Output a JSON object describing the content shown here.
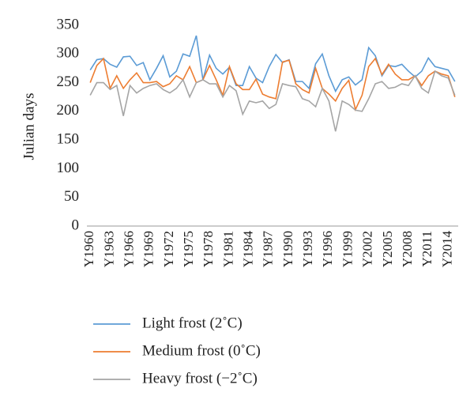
{
  "chart_data": {
    "type": "line",
    "y_label": "Julian days",
    "categories": [
      "Y1960",
      null,
      null,
      "Y1963",
      null,
      null,
      "Y1966",
      null,
      null,
      "Y1969",
      null,
      null,
      "Y1972",
      null,
      null,
      "Y1975",
      null,
      null,
      "Y1978",
      null,
      null,
      "Y1981",
      null,
      null,
      "Y1984",
      null,
      null,
      "Y1987",
      null,
      null,
      "Y1990",
      null,
      null,
      "Y1993",
      null,
      null,
      "Y1996",
      null,
      null,
      "Y1999",
      null,
      null,
      "Y2002",
      null,
      null,
      "Y2005",
      null,
      null,
      "Y2008",
      null,
      null,
      "Y2011",
      null,
      null,
      "Y2014",
      null
    ],
    "series": [
      {
        "name": "Light frost (2˚C)",
        "color": "#5b9bd5",
        "values": [
          272,
          290,
          292,
          282,
          277,
          295,
          296,
          280,
          285,
          255,
          275,
          297,
          260,
          270,
          300,
          296,
          332,
          255,
          298,
          275,
          265,
          277,
          245,
          245,
          278,
          258,
          250,
          278,
          299,
          285,
          290,
          252,
          252,
          240,
          283,
          300,
          262,
          235,
          255,
          260,
          246,
          255,
          311,
          297,
          262,
          280,
          278,
          282,
          270,
          260,
          270,
          293,
          278,
          275,
          272,
          252
        ]
      },
      {
        "name": "Medium frost (0˚C)",
        "color": "#ed7d31",
        "values": [
          250,
          280,
          292,
          240,
          262,
          240,
          255,
          267,
          250,
          250,
          252,
          243,
          248,
          262,
          255,
          278,
          250,
          255,
          280,
          255,
          228,
          278,
          248,
          238,
          238,
          256,
          230,
          225,
          222,
          286,
          289,
          248,
          238,
          232,
          275,
          240,
          230,
          218,
          240,
          254,
          203,
          228,
          278,
          292,
          264,
          282,
          265,
          255,
          255,
          262,
          245,
          262,
          270,
          265,
          262,
          225
        ]
      },
      {
        "name": "Heavy frost (−2˚C)",
        "color": "#a5a5a5",
        "values": [
          228,
          250,
          250,
          238,
          245,
          192,
          245,
          232,
          240,
          245,
          248,
          238,
          232,
          240,
          255,
          225,
          250,
          255,
          248,
          248,
          225,
          245,
          236,
          195,
          218,
          215,
          218,
          205,
          212,
          248,
          245,
          243,
          222,
          218,
          208,
          240,
          218,
          165,
          218,
          212,
          202,
          200,
          222,
          248,
          252,
          240,
          242,
          248,
          245,
          262,
          240,
          232,
          270,
          262,
          258,
          228
        ]
      }
    ],
    "ylim": [
      0,
      350
    ],
    "yticks": [
      0,
      50,
      100,
      150,
      200,
      250,
      300,
      350
    ],
    "grid": false
  }
}
